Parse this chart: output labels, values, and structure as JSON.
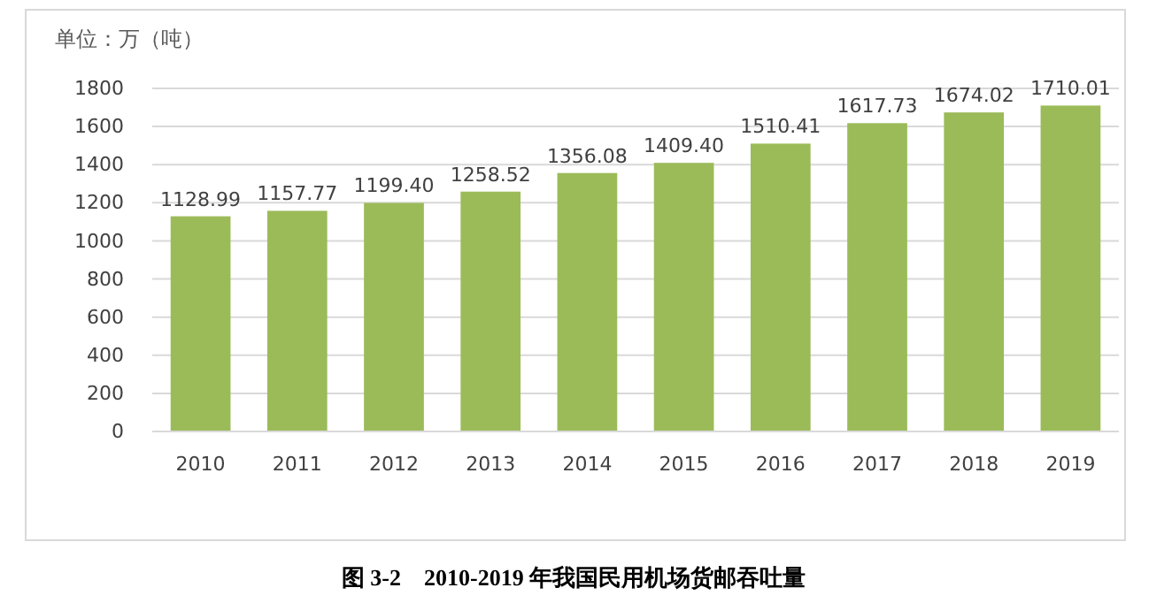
{
  "chart_data": {
    "type": "bar",
    "ylabel": "单位：万（吨）",
    "categories": [
      "2010",
      "2011",
      "2012",
      "2013",
      "2014",
      "2015",
      "2016",
      "2017",
      "2018",
      "2019"
    ],
    "values": [
      1128.99,
      1157.77,
      1199.4,
      1258.52,
      1356.08,
      1409.4,
      1510.41,
      1617.73,
      1674.02,
      1710.01
    ],
    "value_labels": [
      "1128.99",
      "1157.77",
      "1199.40",
      "1258.52",
      "1356.08",
      "1409.40",
      "1510.41",
      "1617.73",
      "1674.02",
      "1710.01"
    ],
    "color": "#9bbb59",
    "ylim": [
      0,
      1800
    ],
    "yticks": [
      0,
      200,
      400,
      600,
      800,
      1000,
      1200,
      1400,
      1600,
      1800
    ],
    "grid": "y",
    "annotations": [
      "图 3-2　2010-2019 年我国民用机场货邮吞吐量"
    ]
  }
}
